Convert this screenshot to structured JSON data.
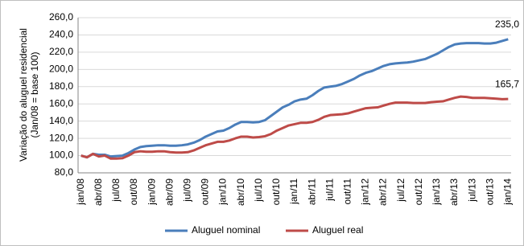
{
  "chart_data": {
    "type": "line",
    "y_label": [
      "Variação do aluguel residencial",
      "(Jan/08 = base 100)"
    ],
    "categories": [
      "jan/08",
      null,
      null,
      "abr/08",
      null,
      null,
      "jul/08",
      null,
      null,
      "out/08",
      null,
      null,
      "jan/09",
      null,
      null,
      "abr/09",
      null,
      null,
      "jul/09",
      null,
      null,
      "out/09",
      null,
      null,
      "jan/10",
      null,
      null,
      "abr/10",
      null,
      null,
      "jul/10",
      null,
      null,
      "out/10",
      null,
      null,
      "jan/11",
      null,
      null,
      "abr/11",
      null,
      null,
      "jul/11",
      null,
      null,
      "out/11",
      null,
      null,
      "jan/12",
      null,
      null,
      "abr/12",
      null,
      null,
      "jul/12",
      null,
      null,
      "out/12",
      null,
      null,
      "jan/13",
      null,
      null,
      "abr/13",
      null,
      null,
      "jul/13",
      null,
      null,
      "out/13",
      null,
      null,
      "jan/14"
    ],
    "series": [
      {
        "name": "Aluguel nominal",
        "color": "#4a7ebb",
        "values": [
          100,
          98,
          102,
          101,
          101,
          99,
          99.5,
          100,
          103,
          107,
          110,
          111,
          111.5,
          112,
          112,
          111.5,
          111.5,
          112,
          113,
          115,
          118,
          122,
          125,
          128,
          129,
          132,
          136,
          139,
          139,
          138.5,
          139,
          141,
          146,
          151,
          156,
          159,
          163,
          165,
          166,
          170,
          175,
          179,
          180,
          181,
          183,
          186,
          189,
          193,
          196,
          198,
          201,
          204,
          206,
          207,
          207.5,
          208,
          209,
          210.5,
          212,
          215,
          218,
          222,
          226,
          229,
          230,
          230.5,
          230.5,
          230.5,
          230,
          230,
          231,
          233,
          235
        ],
        "value_labels": [
          null,
          null,
          null,
          null,
          null,
          null,
          null,
          null,
          null,
          null,
          null,
          null,
          null,
          null,
          null,
          null,
          null,
          null,
          null,
          null,
          null,
          null,
          null,
          null,
          null,
          null,
          null,
          null,
          null,
          null,
          null,
          null,
          null,
          null,
          null,
          null,
          null,
          null,
          null,
          null,
          null,
          null,
          null,
          null,
          null,
          null,
          null,
          null,
          null,
          null,
          null,
          null,
          null,
          null,
          null,
          null,
          null,
          null,
          null,
          null,
          null,
          null,
          null,
          null,
          null,
          null,
          null,
          null,
          null,
          null,
          null,
          null,
          "235,0"
        ]
      },
      {
        "name": "Aluguel real",
        "color": "#be4b48",
        "values": [
          100,
          98,
          102,
          99,
          100,
          96.5,
          96.5,
          97,
          100,
          104,
          105,
          104.5,
          104.5,
          105,
          105,
          104,
          103.5,
          103.5,
          104,
          106,
          109,
          112,
          114,
          116,
          116,
          117.5,
          120,
          122,
          122,
          121,
          121.5,
          122.5,
          125,
          129,
          132,
          135,
          136.5,
          138,
          138,
          139,
          141.5,
          145,
          147,
          147.5,
          148,
          149,
          151,
          153,
          155,
          155.5,
          156,
          158,
          160,
          161.5,
          161.5,
          161.5,
          161,
          161,
          161,
          162,
          162.5,
          163,
          165,
          167,
          168.5,
          168,
          167,
          167,
          167,
          166.5,
          166,
          165.5,
          165.7
        ],
        "value_labels": [
          null,
          null,
          null,
          null,
          null,
          null,
          null,
          null,
          null,
          null,
          null,
          null,
          null,
          null,
          null,
          null,
          null,
          null,
          null,
          null,
          null,
          null,
          null,
          null,
          null,
          null,
          null,
          null,
          null,
          null,
          null,
          null,
          null,
          null,
          null,
          null,
          null,
          null,
          null,
          null,
          null,
          null,
          null,
          null,
          null,
          null,
          null,
          null,
          null,
          null,
          null,
          null,
          null,
          null,
          null,
          null,
          null,
          null,
          null,
          null,
          null,
          null,
          null,
          null,
          null,
          null,
          null,
          null,
          null,
          null,
          null,
          null,
          "165,7"
        ]
      }
    ],
    "ylim": [
      80,
      260
    ],
    "yticks": [
      {
        "value": 80,
        "label": "80,0"
      },
      {
        "value": 100,
        "label": "100,0"
      },
      {
        "value": 120,
        "label": "120,0"
      },
      {
        "value": 140,
        "label": "140,0"
      },
      {
        "value": 160,
        "label": "160,0"
      },
      {
        "value": 180,
        "label": "180,0"
      },
      {
        "value": 200,
        "label": "200,0"
      },
      {
        "value": 220,
        "label": "220,0"
      },
      {
        "value": 240,
        "label": "240,0"
      },
      {
        "value": 260,
        "label": "260,0"
      }
    ],
    "grid": true,
    "legend": "bottom"
  }
}
